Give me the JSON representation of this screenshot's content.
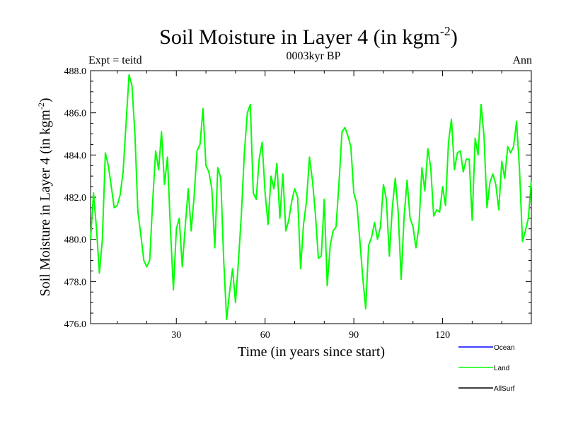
{
  "chart_data": {
    "type": "line",
    "title_main": "Soil Moisture in Layer 4 (in kgm",
    "title_exp": "-2",
    "title_close": ")",
    "subtitle_left": "Expt = teitd",
    "subtitle_center": "0003kyr BP",
    "subtitle_right": "Ann",
    "xlabel": "Time (in years since start)",
    "ylabel_main": "Soil Moisture in Layer 4 (in kgm",
    "ylabel_exp": "-2",
    "ylabel_close": ")",
    "xlim": [
      1,
      150
    ],
    "ylim": [
      476.0,
      488.0
    ],
    "xticks": [
      30,
      60,
      90,
      120
    ],
    "xtick_labels": [
      "30",
      "60",
      "90",
      "120"
    ],
    "yticks": [
      476,
      478,
      480,
      482,
      484,
      486,
      488
    ],
    "ytick_labels": [
      "476.0",
      "478.0",
      "480.0",
      "482.0",
      "484.0",
      "486.0",
      "488.0"
    ],
    "legend": [
      {
        "name": "Ocean",
        "color": "#0000ff"
      },
      {
        "name": "Land",
        "color": "#00ff00"
      },
      {
        "name": "AllSurf",
        "color": "#000000"
      }
    ],
    "series": [
      {
        "name": "Land",
        "color": "#00ff00",
        "x": [
          1,
          2,
          3,
          4,
          5,
          6,
          7,
          8,
          9,
          10,
          11,
          12,
          13,
          14,
          15,
          16,
          17,
          18,
          19,
          20,
          21,
          22,
          23,
          24,
          25,
          26,
          27,
          28,
          29,
          30,
          31,
          32,
          33,
          34,
          35,
          36,
          37,
          38,
          39,
          40,
          41,
          42,
          43,
          44,
          45,
          46,
          47,
          48,
          49,
          50,
          51,
          52,
          53,
          54,
          55,
          56,
          57,
          58,
          59,
          60,
          61,
          62,
          63,
          64,
          65,
          66,
          67,
          68,
          69,
          70,
          71,
          72,
          73,
          74,
          75,
          76,
          77,
          78,
          79,
          80,
          81,
          82,
          83,
          84,
          85,
          86,
          87,
          88,
          89,
          90,
          91,
          92,
          93,
          94,
          95,
          96,
          97,
          98,
          99,
          100,
          101,
          102,
          103,
          104,
          105,
          106,
          107,
          108,
          109,
          110,
          111,
          112,
          113,
          114,
          115,
          116,
          117,
          118,
          119,
          120,
          121,
          122,
          123,
          124,
          125,
          126,
          127,
          128,
          129,
          130,
          131,
          132,
          133,
          134,
          135,
          136,
          137,
          138,
          139,
          140,
          141,
          142,
          143,
          144,
          145,
          146,
          147,
          148,
          149,
          150
        ],
        "values": [
          480.0,
          482.2,
          480.5,
          478.4,
          480.0,
          484.1,
          483.5,
          482.5,
          481.5,
          481.6,
          482.1,
          483.2,
          485.5,
          487.8,
          487.3,
          485.0,
          481.3,
          480.2,
          479.0,
          478.7,
          479.0,
          481.8,
          484.2,
          483.3,
          485.1,
          482.6,
          483.9,
          480.5,
          477.6,
          480.5,
          481.0,
          478.7,
          480.6,
          482.4,
          480.4,
          482.0,
          484.2,
          484.5,
          486.2,
          483.5,
          483.2,
          482.4,
          479.6,
          483.4,
          482.9,
          479.0,
          476.2,
          477.5,
          478.6,
          477.0,
          479.0,
          481.2,
          484.1,
          486.0,
          486.4,
          482.2,
          481.9,
          483.8,
          484.6,
          482.2,
          480.7,
          483.0,
          482.4,
          483.6,
          481.0,
          483.1,
          480.4,
          480.9,
          481.8,
          482.4,
          482.0,
          478.6,
          480.7,
          481.8,
          483.9,
          482.8,
          481.2,
          479.1,
          479.2,
          481.9,
          477.8,
          479.7,
          480.4,
          480.6,
          482.7,
          485.1,
          485.3,
          484.9,
          484.4,
          482.2,
          481.7,
          480.0,
          478.2,
          476.7,
          479.7,
          480.1,
          480.8,
          480.0,
          480.6,
          482.6,
          481.9,
          479.2,
          481.5,
          482.9,
          481.3,
          478.1,
          481.1,
          482.8,
          481.0,
          480.6,
          479.6,
          480.6,
          483.4,
          482.3,
          484.3,
          483.4,
          481.1,
          481.4,
          481.3,
          482.5,
          481.6,
          484.6,
          485.7,
          483.3,
          484.1,
          484.2,
          483.2,
          483.8,
          483.8,
          480.9,
          484.8,
          484.0,
          486.4,
          484.9,
          481.5,
          482.7,
          483.1,
          482.6,
          481.4,
          483.7,
          482.9,
          484.4,
          484.1,
          484.4,
          485.6,
          483.3,
          479.9,
          480.4,
          481.0,
          482.8
        ]
      }
    ]
  }
}
